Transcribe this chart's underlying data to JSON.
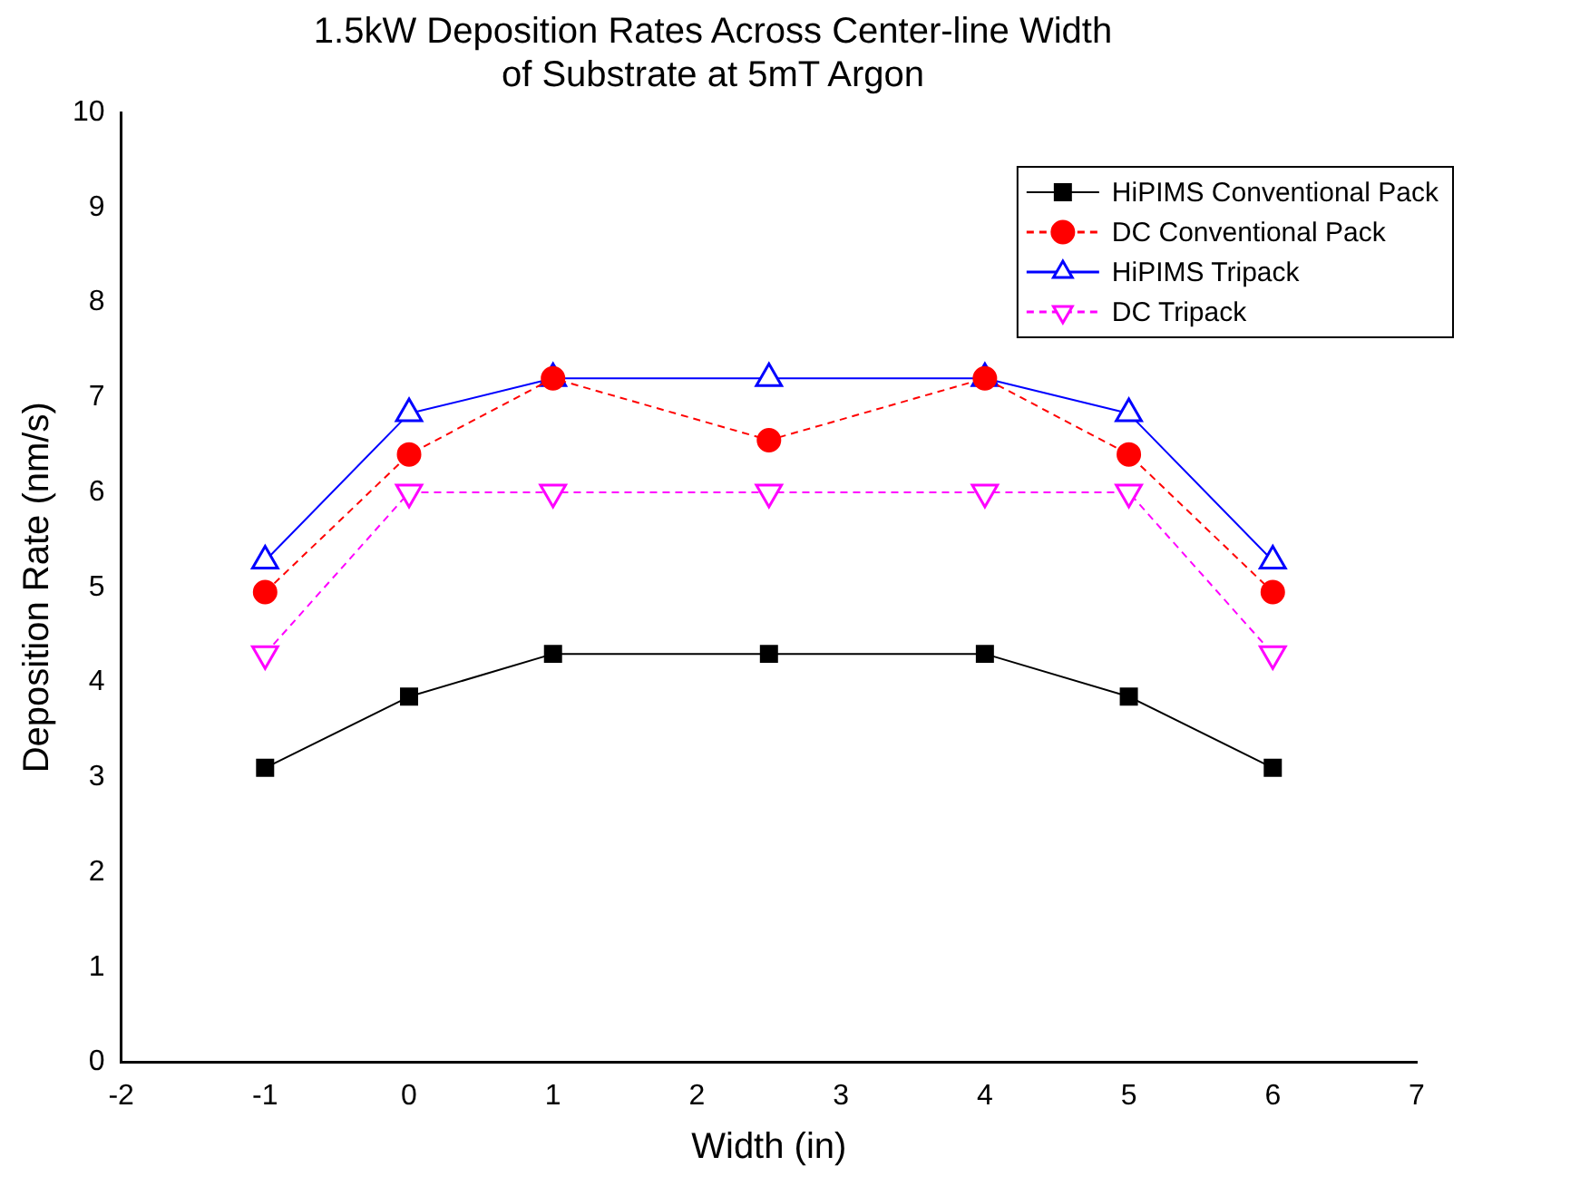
{
  "chart_data": {
    "type": "line",
    "title": "1.5kW Deposition Rates Across Center-line Width\nof Substrate at 5mT Argon",
    "xlabel": "Width (in)",
    "ylabel": "Deposition Rate (nm/s)",
    "x": [
      -1,
      0,
      1,
      2.5,
      4,
      5,
      6
    ],
    "series": [
      {
        "name": "HiPIMS Conventional Pack",
        "color": "#000000",
        "marker": "square",
        "line_style": "solid",
        "values": [
          3.1,
          3.85,
          4.3,
          4.3,
          4.3,
          3.85,
          3.1
        ]
      },
      {
        "name": "DC Conventional Pack",
        "color": "#ff0000",
        "marker": "circle",
        "line_style": "dashed",
        "values": [
          4.95,
          6.4,
          7.2,
          6.55,
          7.2,
          6.4,
          4.95
        ]
      },
      {
        "name": "HiPIMS Tripack",
        "color": "#0000ff",
        "marker": "triangle",
        "line_style": "solid",
        "values": [
          5.28,
          6.83,
          7.2,
          7.2,
          7.2,
          6.83,
          5.28
        ]
      },
      {
        "name": "DC Tripack",
        "color": "#ff00ff",
        "marker": "triangle_down",
        "line_style": "dashed",
        "values": [
          4.3,
          6.0,
          6.0,
          6.0,
          6.0,
          6.0,
          4.3
        ]
      }
    ],
    "xlim": [
      -2,
      7
    ],
    "xticks": [
      -2,
      -1,
      0,
      1,
      2,
      3,
      4,
      5,
      6,
      7
    ],
    "ylim": [
      0,
      10
    ],
    "yticks": [
      0,
      1,
      2,
      3,
      4,
      5,
      6,
      7,
      8,
      9,
      10
    ],
    "grid": false,
    "legend": "top right"
  }
}
